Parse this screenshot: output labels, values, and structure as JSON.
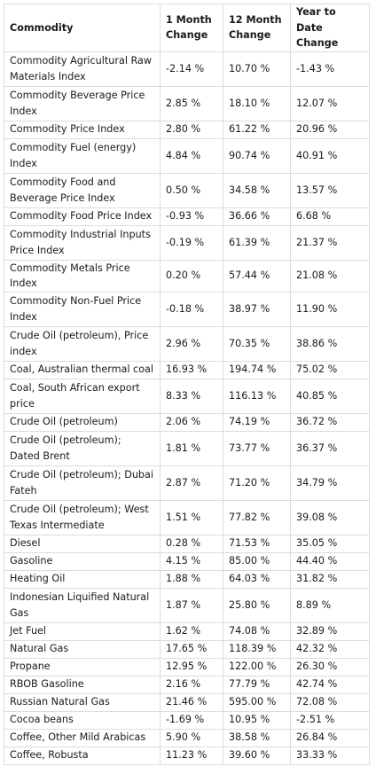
{
  "table": {
    "headers": [
      "Commodity",
      "1 Month Change",
      "12 Month Change",
      "Year to Date Change"
    ],
    "rows": [
      [
        "Commodity Agricultural Raw Materials Index",
        "-2.14 %",
        "10.70 %",
        "-1.43 %"
      ],
      [
        "Commodity Beverage Price Index",
        "2.85 %",
        "18.10 %",
        "12.07 %"
      ],
      [
        "Commodity Price Index",
        "2.80 %",
        "61.22 %",
        "20.96 %"
      ],
      [
        "Commodity Fuel (energy) Index",
        "4.84 %",
        "90.74 %",
        "40.91 %"
      ],
      [
        "Commodity Food and Beverage Price Index",
        "0.50 %",
        "34.58 %",
        "13.57 %"
      ],
      [
        "Commodity Food Price Index",
        "-0.93 %",
        "36.66 %",
        "6.68 %"
      ],
      [
        "Commodity Industrial Inputs Price Index",
        "-0.19 %",
        "61.39 %",
        "21.37 %"
      ],
      [
        "Commodity Metals Price Index",
        "0.20 %",
        "57.44 %",
        "21.08 %"
      ],
      [
        "Commodity Non-Fuel Price Index",
        "-0.18 %",
        "38.97 %",
        "11.90 %"
      ],
      [
        "Crude Oil (petroleum), Price index",
        "2.96 %",
        "70.35 %",
        "38.86 %"
      ],
      [
        "Coal, Australian thermal coal",
        "16.93 %",
        "194.74 %",
        "75.02 %"
      ],
      [
        "Coal, South African export price",
        "8.33 %",
        "116.13 %",
        "40.85 %"
      ],
      [
        "Crude Oil (petroleum)",
        "2.06 %",
        "74.19 %",
        "36.72 %"
      ],
      [
        "Crude Oil (petroleum); Dated Brent",
        "1.81 %",
        "73.77 %",
        "36.37 %"
      ],
      [
        "Crude Oil (petroleum); Dubai Fateh",
        "2.87 %",
        "71.20 %",
        "34.79 %"
      ],
      [
        "Crude Oil (petroleum); West Texas Intermediate",
        "1.51 %",
        "77.82 %",
        "39.08 %"
      ],
      [
        "Diesel",
        "0.28 %",
        "71.53 %",
        "35.05 %"
      ],
      [
        "Gasoline",
        "4.15 %",
        "85.00 %",
        "44.40 %"
      ],
      [
        "Heating Oil",
        "1.88 %",
        "64.03 %",
        "31.82 %"
      ],
      [
        "Indonesian Liquified Natural Gas",
        "1.87 %",
        "25.80 %",
        "8.89 %"
      ],
      [
        "Jet Fuel",
        "1.62 %",
        "74.08 %",
        "32.89 %"
      ],
      [
        "Natural Gas",
        "17.65 %",
        "118.39 %",
        "42.32 %"
      ],
      [
        "Propane",
        "12.95 %",
        "122.00 %",
        "26.30 %"
      ],
      [
        "RBOB Gasoline",
        "2.16 %",
        "77.79 %",
        "42.74 %"
      ],
      [
        "Russian Natural Gas",
        "21.46 %",
        "595.00 %",
        "72.08 %"
      ],
      [
        "Cocoa beans",
        "-1.69 %",
        "10.95 %",
        "-2.51 %"
      ],
      [
        "Coffee, Other Mild Arabicas",
        "5.90 %",
        "38.58 %",
        "26.84 %"
      ],
      [
        "Coffee, Robusta",
        "11.23 %",
        "39.60 %",
        "33.33 %"
      ]
    ]
  }
}
